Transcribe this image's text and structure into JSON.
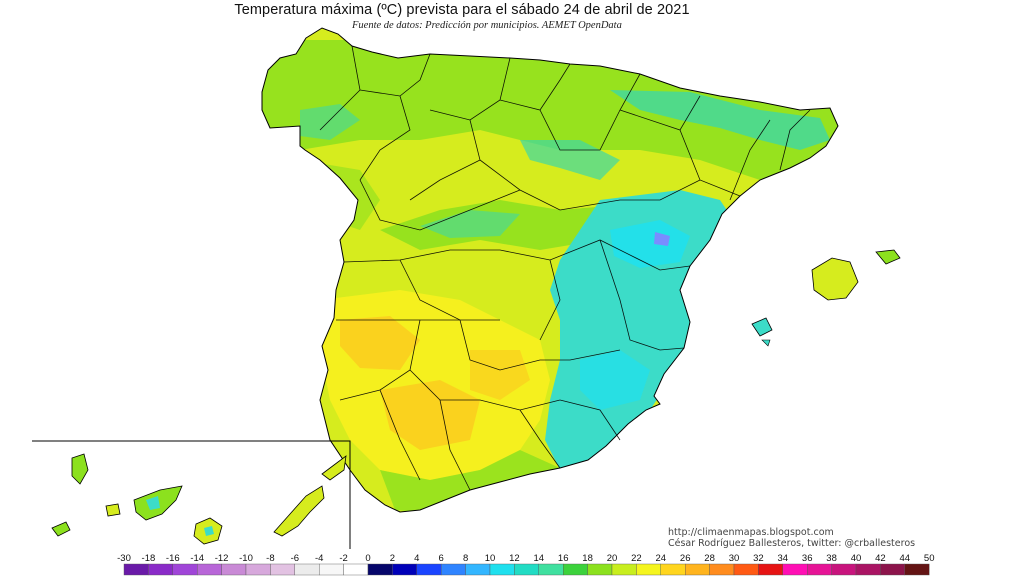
{
  "title": "Temperatura máxima (ºC) prevista para el sábado 24 de abril de 2021",
  "subtitle": "Fuente de datos: Predicción por municipios. AEMET OpenData",
  "credits": {
    "url": "http://climaenmapas.blogspot.com",
    "author": "César Rodríguez Ballesteros, twitter: @crballesteros"
  },
  "legend": {
    "labels": [
      "-30",
      "-18",
      "-16",
      "-14",
      "-12",
      "-10",
      "-8",
      "-6",
      "-4",
      "-2",
      "0",
      "2",
      "4",
      "6",
      "8",
      "10",
      "12",
      "14",
      "16",
      "18",
      "20",
      "22",
      "24",
      "26",
      "28",
      "30",
      "32",
      "34",
      "36",
      "38",
      "40",
      "42",
      "44",
      "50"
    ],
    "colors": [
      "#6a1aa8",
      "#8a2bc8",
      "#a045d8",
      "#b866d8",
      "#c98ad6",
      "#d7a8dc",
      "#e2c2e2",
      "#ececec",
      "#f7f7f7",
      "#ffffff",
      "#06066b",
      "#0000b8",
      "#1a44ff",
      "#2f84ff",
      "#33b6ff",
      "#1fe0ee",
      "#22dcc4",
      "#40e0a0",
      "#3cd23c",
      "#8ce11e",
      "#c8ee1e",
      "#f5f51e",
      "#ffd51e",
      "#ffb41e",
      "#ff8c1e",
      "#ff5a14",
      "#e61414",
      "#ff0fb4",
      "#e61496",
      "#c8147d",
      "#aa1464",
      "#8c144b",
      "#641414"
    ]
  },
  "map": {
    "region": "Spain (peninsula, Baleares, Canarias)",
    "inset": "Islas Canarias"
  }
}
